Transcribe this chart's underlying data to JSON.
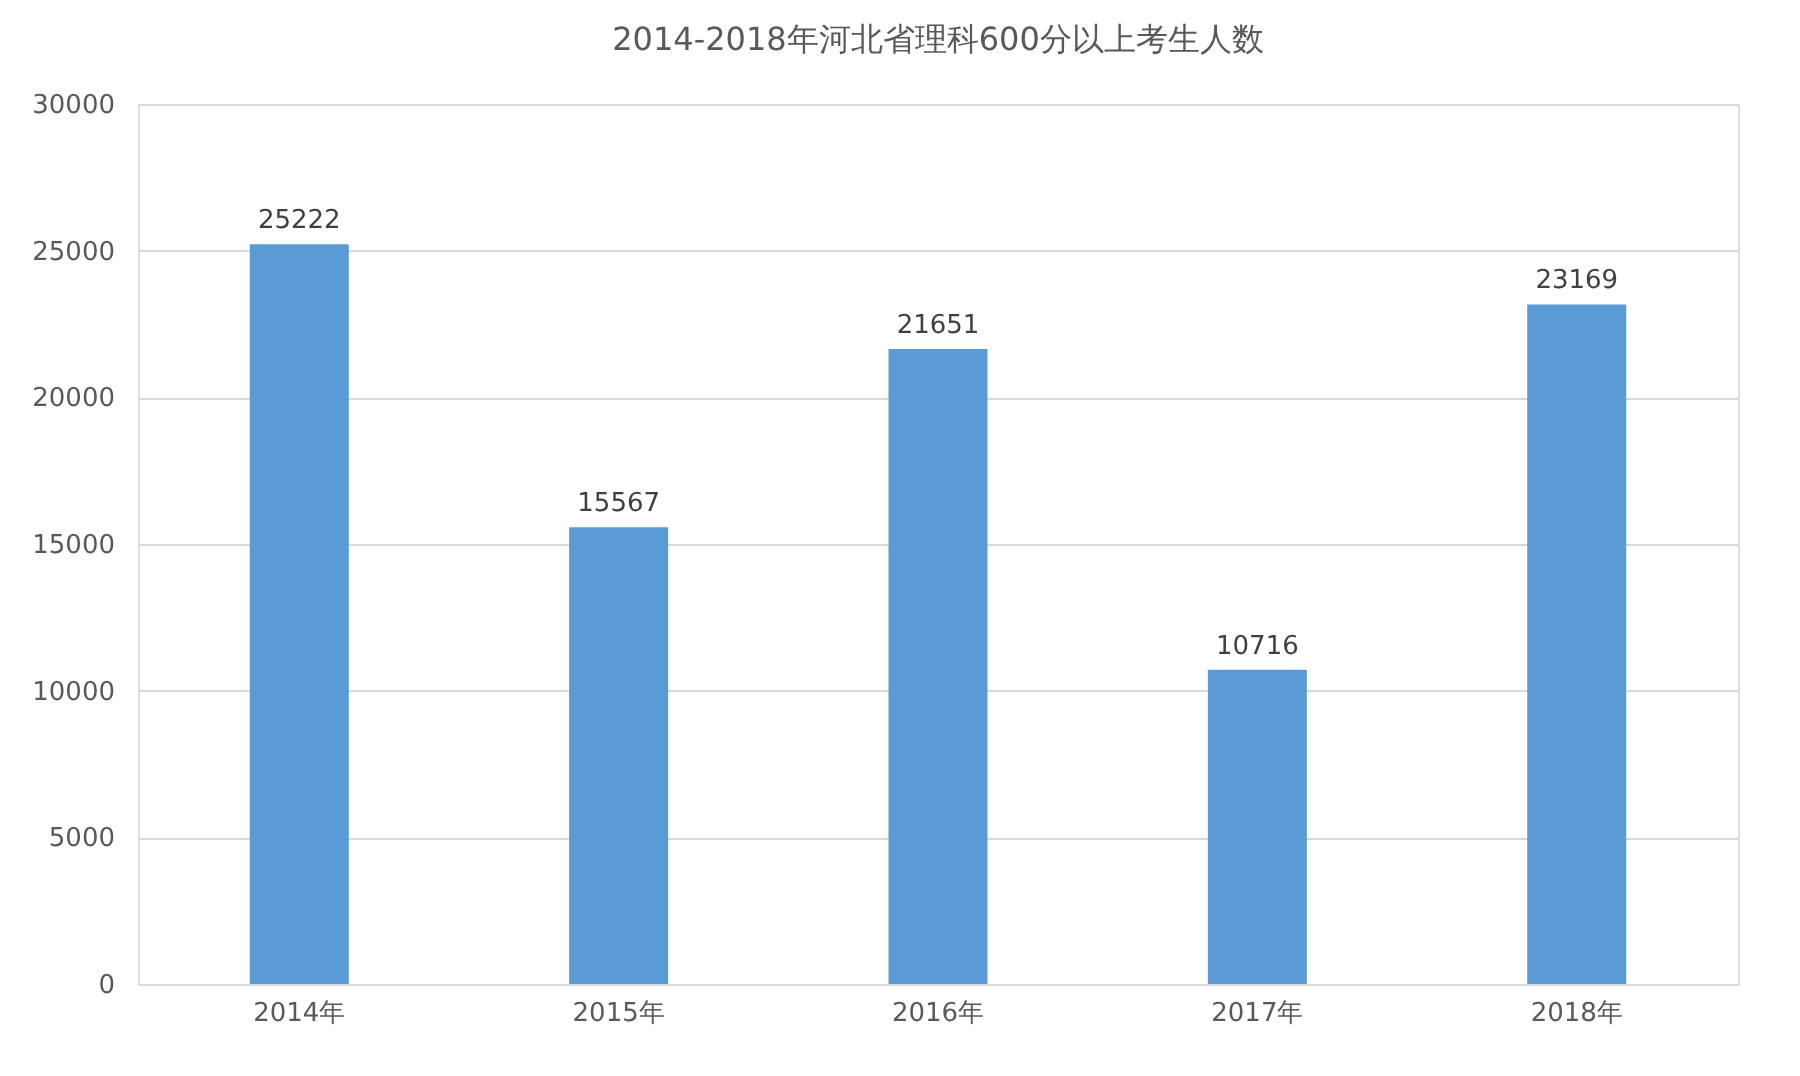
{
  "chart_data": {
    "type": "bar",
    "title": "2014-2018年河北省理科600分以上考生人数",
    "categories": [
      "2014年",
      "2015年",
      "2016年",
      "2017年",
      "2018年"
    ],
    "values": [
      25222,
      15567,
      21651,
      10716,
      23169
    ],
    "color": "#5b9bd5",
    "ylim": [
      0,
      30000
    ],
    "yticks": [
      0,
      5000,
      10000,
      15000,
      20000,
      25000,
      30000
    ],
    "grid": "y",
    "data_labels": true
  }
}
